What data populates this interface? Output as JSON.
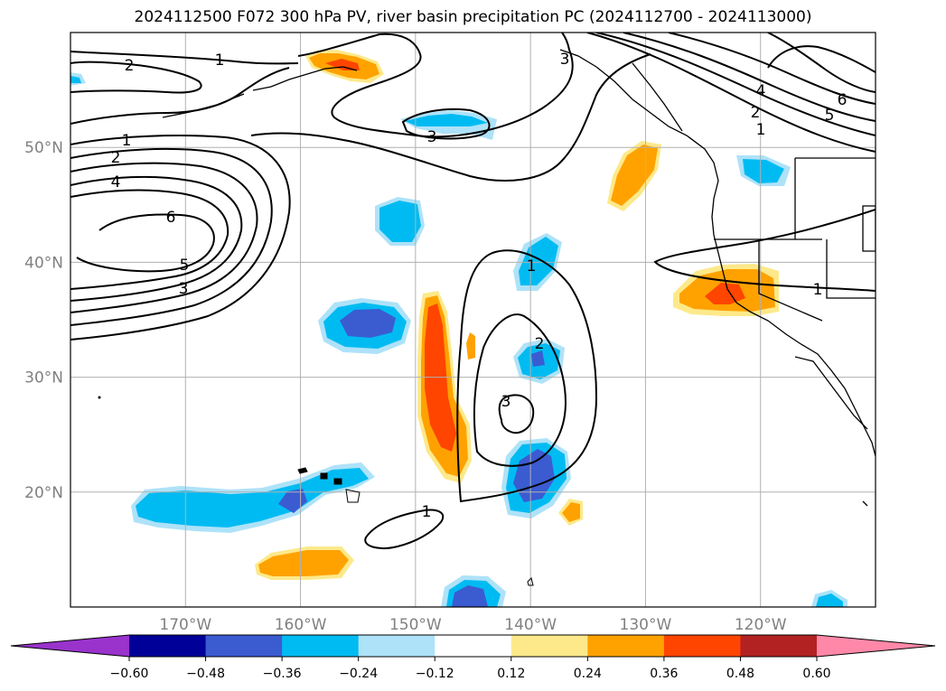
{
  "title": "2024112500 F072 300 hPa PV, river basin precipitation PC (2024112700 - 2024113000)",
  "map": {
    "lon_range": [
      -180,
      -110
    ],
    "lat_range": [
      10,
      60
    ],
    "lon_ticks": [
      -170,
      -160,
      -150,
      -140,
      -130,
      -120
    ],
    "lat_ticks": [
      20,
      30,
      40,
      50
    ],
    "lon_labels": [
      "170°W",
      "160°W",
      "150°W",
      "140°W",
      "130°W",
      "120°W"
    ],
    "lat_labels": [
      "20°N",
      "30°N",
      "40°N",
      "50°N"
    ],
    "grid": true
  },
  "contour_labels": [
    "2",
    "1",
    "2",
    "1",
    "4",
    "6",
    "5",
    "3",
    "3",
    "3",
    "4",
    "2",
    "1",
    "5",
    "6",
    "1",
    "2",
    "3",
    "1",
    "1"
  ],
  "colorbar": {
    "tick_labels": [
      "−0.60",
      "−0.48",
      "−0.36",
      "−0.24",
      "−0.12",
      "0.12",
      "0.24",
      "0.36",
      "0.48",
      "0.60"
    ],
    "colors": [
      "#9933cc",
      "#000099",
      "#3b5bd1",
      "#00bbf2",
      "#aee2f8",
      "#ffffff",
      "#fde98a",
      "#ffa200",
      "#ff4500",
      "#b22222",
      "#ff88a8"
    ]
  }
}
